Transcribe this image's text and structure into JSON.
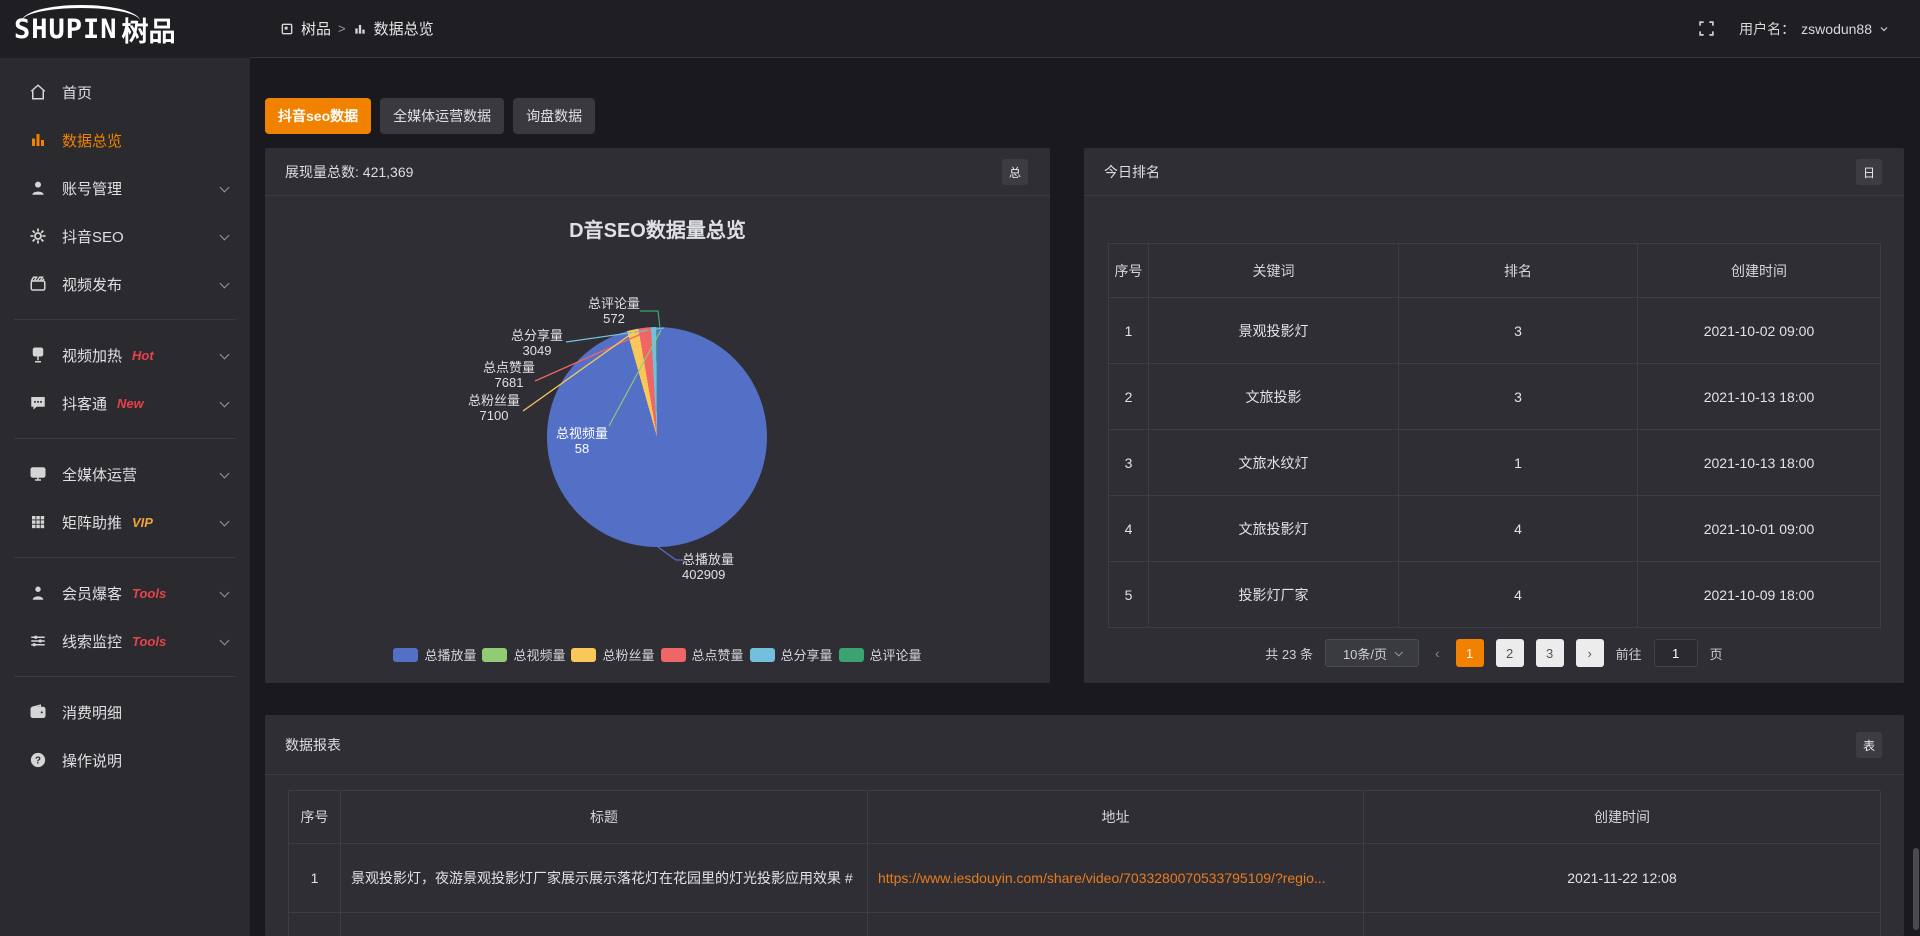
{
  "header": {
    "logo_en": "SHUPIN",
    "logo_cn": "树品",
    "breadcrumb": {
      "root": "树品",
      "separator": ">",
      "current": "数据总览"
    },
    "user_label": "用户名：",
    "username": "zswodun88"
  },
  "sidebar": {
    "items": [
      {
        "label": "首页",
        "icon": "home",
        "active": false,
        "expandable": false,
        "badge": "",
        "badge_color": "",
        "divider_after": false
      },
      {
        "label": "数据总览",
        "icon": "bar-chart",
        "active": true,
        "expandable": false,
        "badge": "",
        "badge_color": "",
        "divider_after": false
      },
      {
        "label": "账号管理",
        "icon": "user",
        "active": false,
        "expandable": true,
        "badge": "",
        "badge_color": "",
        "divider_after": false
      },
      {
        "label": "抖音SEO",
        "icon": "gear",
        "active": false,
        "expandable": true,
        "badge": "",
        "badge_color": "",
        "divider_after": false
      },
      {
        "label": "视频发布",
        "icon": "clapperboard",
        "active": false,
        "expandable": true,
        "badge": "",
        "badge_color": "",
        "divider_after": true
      },
      {
        "label": "视频加热",
        "icon": "heat",
        "active": false,
        "expandable": true,
        "badge": "Hot",
        "badge_color": "#e8414d",
        "divider_after": false
      },
      {
        "label": "抖客通",
        "icon": "chat",
        "active": false,
        "expandable": true,
        "badge": "New",
        "badge_color": "#e8414d",
        "divider_after": true
      },
      {
        "label": "全媒体运营",
        "icon": "monitor",
        "active": false,
        "expandable": true,
        "badge": "",
        "badge_color": "",
        "divider_after": false
      },
      {
        "label": "矩阵助推",
        "icon": "grid",
        "active": false,
        "expandable": true,
        "badge": "VIP",
        "badge_color": "#f0a33c",
        "divider_after": true
      },
      {
        "label": "会员爆客",
        "icon": "member",
        "active": false,
        "expandable": true,
        "badge": "Tools",
        "badge_color": "#e8414d",
        "divider_after": false
      },
      {
        "label": "线索监控",
        "icon": "sliders",
        "active": false,
        "expandable": true,
        "badge": "Tools",
        "badge_color": "#e8414d",
        "divider_after": true
      },
      {
        "label": "消费明细",
        "icon": "wallet",
        "active": false,
        "expandable": false,
        "badge": "",
        "badge_color": "",
        "divider_after": false
      },
      {
        "label": "操作说明",
        "icon": "help",
        "active": false,
        "expandable": false,
        "badge": "",
        "badge_color": "",
        "divider_after": false
      }
    ]
  },
  "tabs": [
    {
      "label": "抖音seo数据",
      "active": true
    },
    {
      "label": "全媒体运营数据",
      "active": false
    },
    {
      "label": "询盘数据",
      "active": false
    }
  ],
  "overview_panel": {
    "title_label": "展现量总数:",
    "title_value": "421,369",
    "corner_button": "总"
  },
  "chart_data": {
    "type": "pie",
    "title": "D音SEO数据量总览",
    "total": 421369,
    "items": [
      {
        "name": "总播放量",
        "value": 402909,
        "color": "#5470C6"
      },
      {
        "name": "总视频量",
        "value": 58,
        "color": "#91CC75"
      },
      {
        "name": "总粉丝量",
        "value": 7100,
        "color": "#FAC858"
      },
      {
        "name": "总点赞量",
        "value": 7681,
        "color": "#EE6666"
      },
      {
        "name": "总分享量",
        "value": 3049,
        "color": "#73C0DE"
      },
      {
        "name": "总评论量",
        "value": 572,
        "color": "#3BA272"
      }
    ],
    "draw_order": [
      2,
      3,
      4,
      5,
      1,
      0
    ],
    "start_angle_deg": 344.2,
    "legend_position": "bottom"
  },
  "ranking_panel": {
    "title": "今日排名",
    "corner_button": "日",
    "table": {
      "headers": [
        "序号",
        "关键词",
        "排名",
        "创建时间"
      ],
      "rows": [
        [
          "1",
          "景观投影灯",
          "3",
          "2021-10-02 09:00"
        ],
        [
          "2",
          "文旅投影",
          "3",
          "2021-10-13 18:00"
        ],
        [
          "3",
          "文旅水纹灯",
          "1",
          "2021-10-13 18:00"
        ],
        [
          "4",
          "文旅投影灯",
          "4",
          "2021-10-01 09:00"
        ],
        [
          "5",
          "投影灯厂家",
          "4",
          "2021-10-09 18:00"
        ]
      ]
    },
    "pagination": {
      "total_label": "共 23 条",
      "page_size": "10条/页",
      "prev": "‹",
      "pages": [
        "1",
        "2",
        "3"
      ],
      "active_page": "1",
      "next": "›",
      "goto_label": "前往",
      "goto_value": "1",
      "goto_suffix": "页"
    }
  },
  "report_panel": {
    "title": "数据报表",
    "corner_button": "表",
    "table": {
      "headers": [
        "序号",
        "标题",
        "地址",
        "创建时间"
      ],
      "rows": [
        [
          "1",
          "景观投影灯，夜游景观投影灯厂家展示展示落花灯在花园里的灯光投影应用效果 #",
          "https://www.iesdouyin.com/share/video/7033280070533795109/?regio...",
          "2021-11-22 12:08"
        ]
      ]
    }
  },
  "colors": {
    "accent": "#F08200",
    "link": "#E87C21"
  }
}
